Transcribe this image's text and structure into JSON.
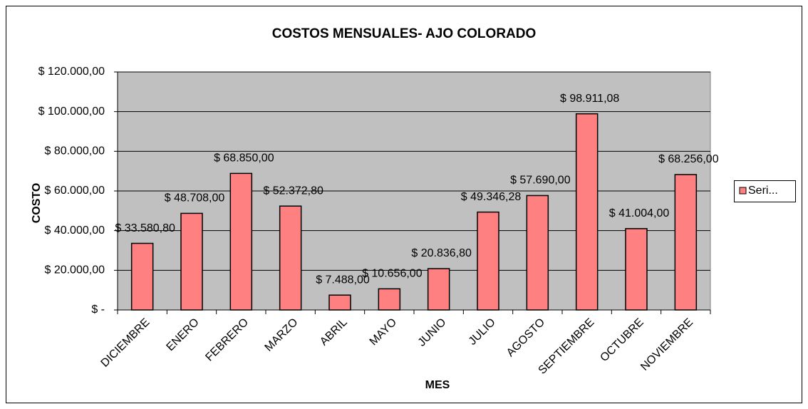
{
  "chart_data": {
    "type": "bar",
    "title": "COSTOS MENSUALES- AJO COLORADO",
    "x_label": "MES",
    "y_label": "COSTO",
    "categories": [
      "DICIEMBRE",
      "ENERO",
      "FEBRERO",
      "MARZO",
      "ABRIL",
      "MAYO",
      "JUNIO",
      "JULIO",
      "AGOSTO",
      "SEPTIEMBRE",
      "OCTUBRE",
      "NOVIEMBRE"
    ],
    "series": [
      {
        "name": "Seri...",
        "color": "#ff8080",
        "values": [
          33580.8,
          48708,
          68850,
          52372.8,
          7488,
          10656,
          20836.8,
          49346.28,
          57690,
          98911.08,
          41004,
          68256
        ],
        "value_labels": [
          "$ 33.580,80",
          "$ 48.708,00",
          "$ 68.850,00",
          "$ 52.372,80",
          "$ 7.488,00",
          "$ 10.656,00",
          "$ 20.836,80",
          "$ 49.346,28",
          "$ 57.690,00",
          "$ 98.911,08",
          "$ 41.004,00",
          "$ 68.256,00"
        ]
      }
    ],
    "ylim": [
      0,
      120000
    ],
    "yticks": [
      {
        "value": 0,
        "label": "$ -"
      },
      {
        "value": 20000,
        "label": "$ 20.000,00"
      },
      {
        "value": 40000,
        "label": "$ 40.000,00"
      },
      {
        "value": 60000,
        "label": "$ 60.000,00"
      },
      {
        "value": 80000,
        "label": "$ 80.000,00"
      },
      {
        "value": 100000,
        "label": "$ 100.000,00"
      },
      {
        "value": 120000,
        "label": "$ 120.000,00"
      }
    ],
    "grid": true,
    "legend": "right"
  }
}
